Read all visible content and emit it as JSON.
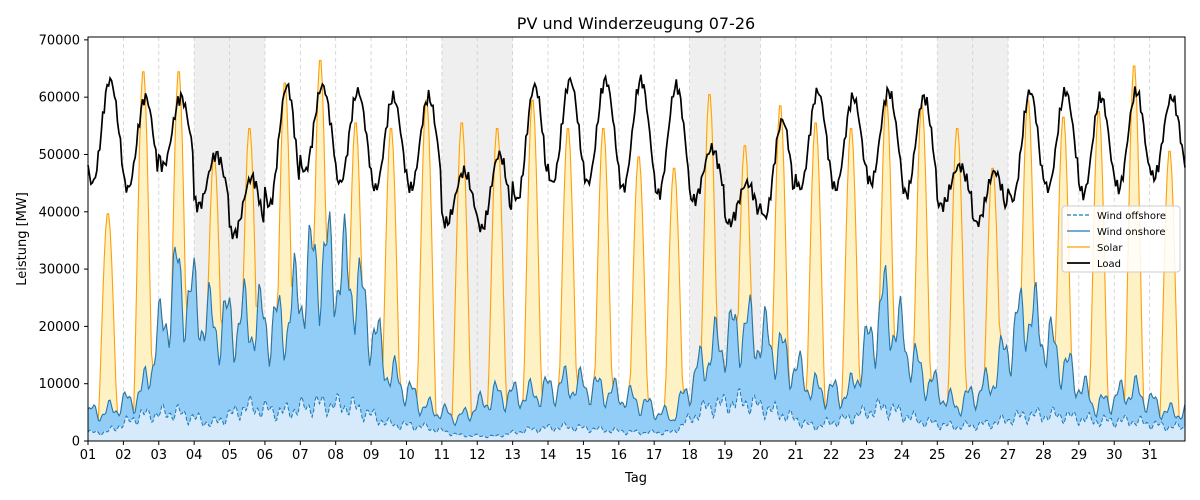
{
  "chart_data": {
    "type": "area",
    "title": "PV und Winderzeugung 07-26",
    "xlabel": "Tag",
    "ylabel": "Leistung [MW]",
    "xlim": [
      1,
      32
    ],
    "ylim": [
      0,
      70500
    ],
    "x_ticks": [
      "01",
      "02",
      "03",
      "04",
      "05",
      "06",
      "07",
      "08",
      "09",
      "10",
      "11",
      "12",
      "13",
      "14",
      "15",
      "16",
      "17",
      "18",
      "19",
      "20",
      "21",
      "22",
      "23",
      "24",
      "25",
      "26",
      "27",
      "28",
      "29",
      "30",
      "31"
    ],
    "y_ticks": [
      0,
      10000,
      20000,
      30000,
      40000,
      50000,
      60000,
      70000
    ],
    "weekend_days": [
      4,
      5,
      11,
      12,
      18,
      19,
      25,
      26
    ],
    "legend_position": "center-right",
    "grid_vertical_dashed": true,
    "days": [
      1,
      2,
      3,
      4,
      5,
      6,
      7,
      8,
      9,
      10,
      11,
      12,
      13,
      14,
      15,
      16,
      17,
      18,
      19,
      20,
      21,
      22,
      23,
      24,
      25,
      26,
      27,
      28,
      29,
      30,
      31
    ],
    "series": [
      {
        "name": "Wind offshore",
        "style": "dashed",
        "color": "#1f77b4",
        "fill": "#d6eafc",
        "daily_mean": [
          1500,
          4500,
          5000,
          3000,
          6000,
          5000,
          6500,
          6000,
          3000,
          2500,
          1000,
          800,
          2000,
          2500,
          2000,
          1500,
          1500,
          6000,
          7000,
          5000,
          2500,
          4000,
          6000,
          3500,
          2500,
          3000,
          4500,
          4500,
          3500,
          3500,
          2500
        ]
      },
      {
        "name": "Wind onshore",
        "style": "solid",
        "color": "#1f77b4",
        "fill": "#91cdf7",
        "daily_mean": [
          5000,
          8000,
          28000,
          20000,
          21000,
          20000,
          32000,
          28000,
          12000,
          6000,
          4000,
          8000,
          8000,
          10000,
          9000,
          7000,
          4000,
          15000,
          20000,
          16000,
          9000,
          8000,
          24000,
          12000,
          6000,
          10000,
          23000,
          14000,
          6000,
          9000,
          5000
        ]
      },
      {
        "name": "Solar",
        "style": "solid",
        "color": "#ff9f0a",
        "fill": "#fef1c4",
        "daily_peak": [
          40000,
          65000,
          65000,
          50000,
          55000,
          63000,
          67000,
          56000,
          55000,
          60000,
          56000,
          55000,
          60000,
          55000,
          55000,
          50000,
          48000,
          61000,
          52000,
          59000,
          56000,
          55000,
          60000,
          59000,
          55000,
          48000,
          60000,
          57000,
          58000,
          66000,
          51000
        ]
      },
      {
        "name": "Load",
        "style": "solid",
        "color": "#000000",
        "daily_peak": [
          63000,
          60000,
          60000,
          50000,
          46000,
          62000,
          62000,
          61000,
          60000,
          60000,
          47000,
          50000,
          62000,
          63000,
          63000,
          63000,
          62000,
          51000,
          45000,
          56000,
          61000,
          60000,
          61000,
          60000,
          48000,
          47000,
          61000,
          61000,
          60000,
          61000,
          60000
        ],
        "daily_min": [
          45000,
          44000,
          48000,
          41000,
          36000,
          41000,
          47000,
          45000,
          44000,
          44000,
          38000,
          37000,
          42000,
          45000,
          45000,
          44000,
          43000,
          42000,
          38000,
          39000,
          44000,
          44000,
          45000,
          43000,
          41000,
          38000,
          42000,
          44000,
          43000,
          44000,
          46000
        ]
      }
    ]
  }
}
